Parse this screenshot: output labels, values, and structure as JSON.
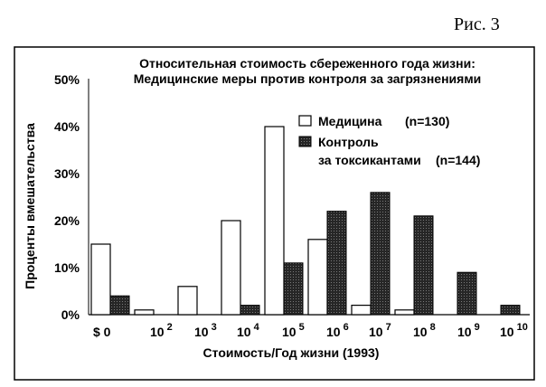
{
  "figure_label": "Рис. 3",
  "chart_data": {
    "type": "bar",
    "title": "Относительная стоимость сбереженного года жизни:",
    "subtitle": "Медицинские меры против контроля за загрязнениями",
    "xlabel": "Стоимость/Год жизни (1993)",
    "ylabel": "Проценты вмешательства",
    "ylim": [
      0,
      50
    ],
    "y_ticks": [
      "0%",
      "10%",
      "20%",
      "30%",
      "40%",
      "50%"
    ],
    "categories": [
      {
        "base": "$ 0",
        "exp": ""
      },
      {
        "base": "10",
        "exp": "2"
      },
      {
        "base": "10",
        "exp": "3"
      },
      {
        "base": "10",
        "exp": "4"
      },
      {
        "base": "10",
        "exp": "5"
      },
      {
        "base": "10",
        "exp": "6"
      },
      {
        "base": "10",
        "exp": "7"
      },
      {
        "base": "10",
        "exp": "8"
      },
      {
        "base": "10",
        "exp": "9"
      },
      {
        "base": "10",
        "exp": "10"
      }
    ],
    "series": [
      {
        "name": "Медицина",
        "n_label": "(n=130)",
        "color": "#ffffff",
        "values": [
          15,
          1,
          6,
          20,
          40,
          16,
          2,
          1,
          0,
          0
        ]
      },
      {
        "name": "Контроль",
        "name_line2": "за токсикантами",
        "n_label": "(n=144)",
        "color": "#202020",
        "values": [
          4,
          0,
          0,
          2,
          11,
          22,
          26,
          21,
          9,
          2
        ]
      }
    ],
    "grid": false,
    "legend_position": "top-right"
  }
}
